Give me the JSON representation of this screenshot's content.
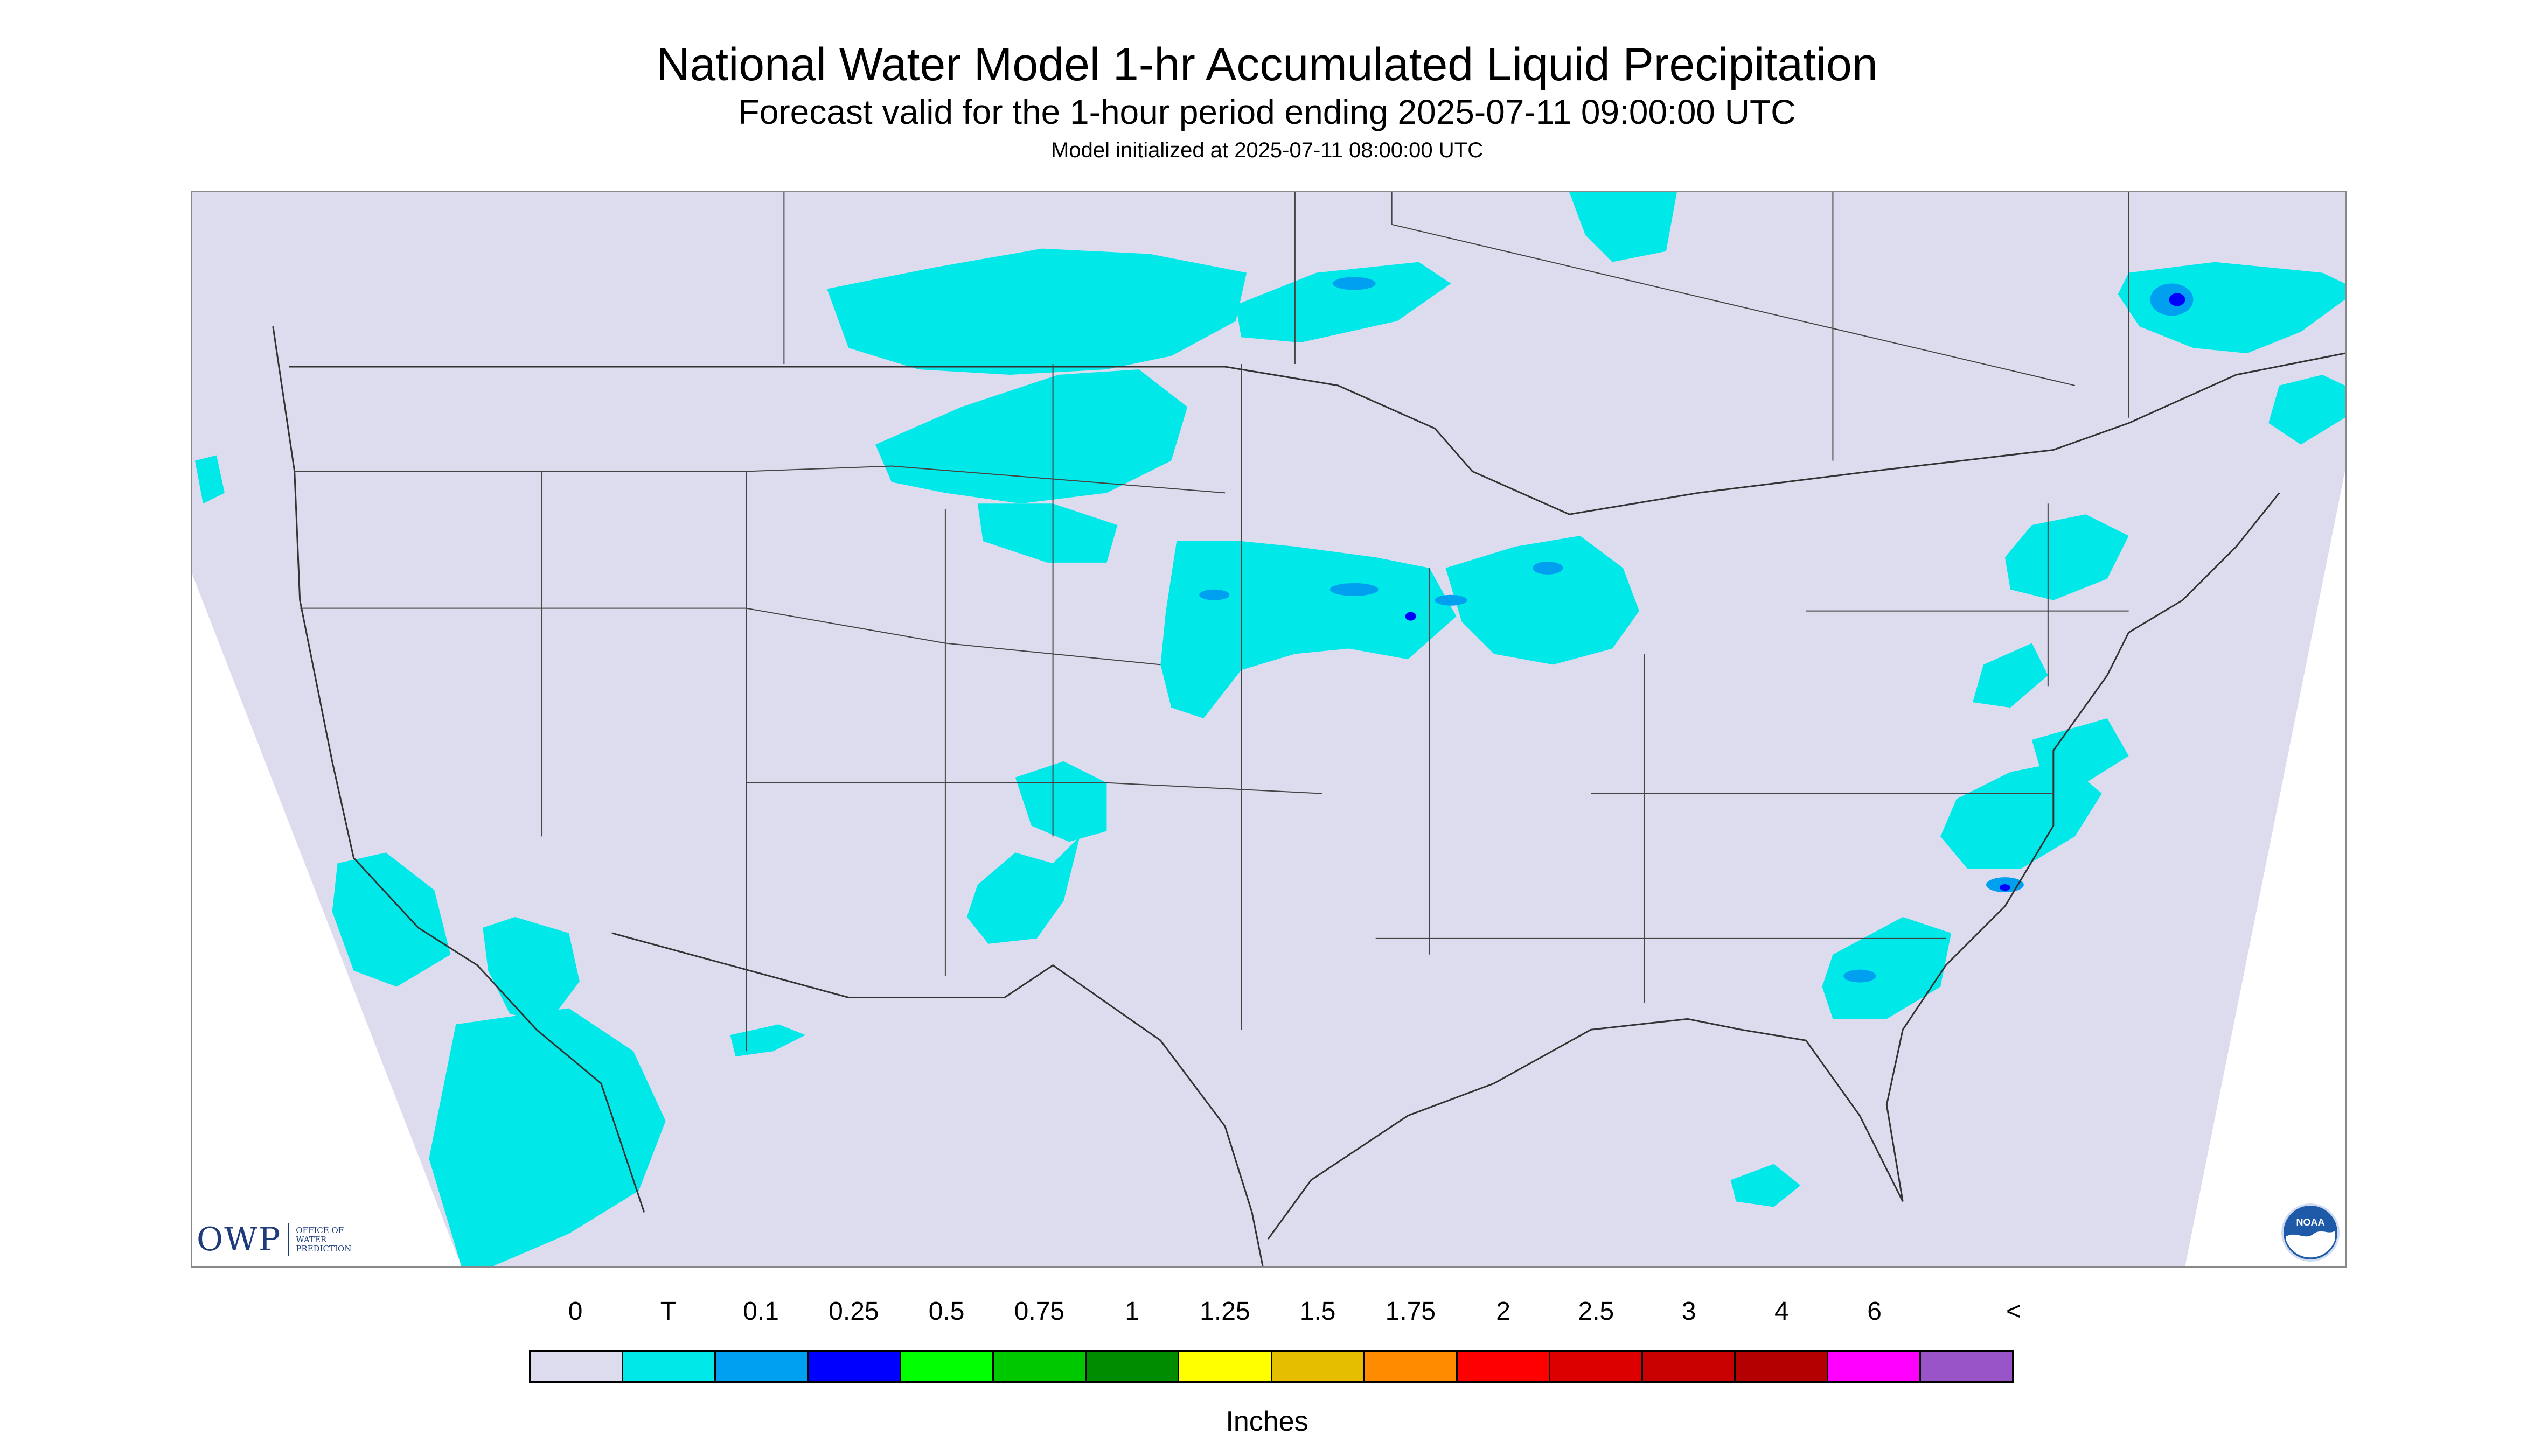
{
  "header": {
    "title": "National Water Model 1-hr Accumulated Liquid Precipitation",
    "subtitle": "Forecast valid for the 1-hour period ending 2025-07-11 09:00:00 UTC",
    "init": "Model initialized at 2025-07-11 08:00:00 UTC"
  },
  "logos": {
    "owp_mark": "OWP",
    "owp_text": "OFFICE OF WATER PREDICTION",
    "noaa_text": "NOAA"
  },
  "legend": {
    "tick_labels": [
      "0",
      "T",
      "0.1",
      "0.25",
      "0.5",
      "0.75",
      "1",
      "1.25",
      "1.5",
      "1.75",
      "2",
      "2.5",
      "3",
      "4",
      "6",
      "<"
    ],
    "colors": [
      "#dcdcee",
      "#00e8e8",
      "#00a0f0",
      "#0000ff",
      "#00ff00",
      "#00c800",
      "#008c00",
      "#ffff00",
      "#e6be00",
      "#ff8c00",
      "#ff0000",
      "#dc0000",
      "#c80000",
      "#b40000",
      "#ff00ff",
      "#9955c8"
    ],
    "units": "Inches"
  },
  "map": {
    "background": "#dcdcee",
    "precip_colors": {
      "trace": "#00e8e8",
      "light": "#00a0f0",
      "moderate": "#0000ff"
    }
  }
}
